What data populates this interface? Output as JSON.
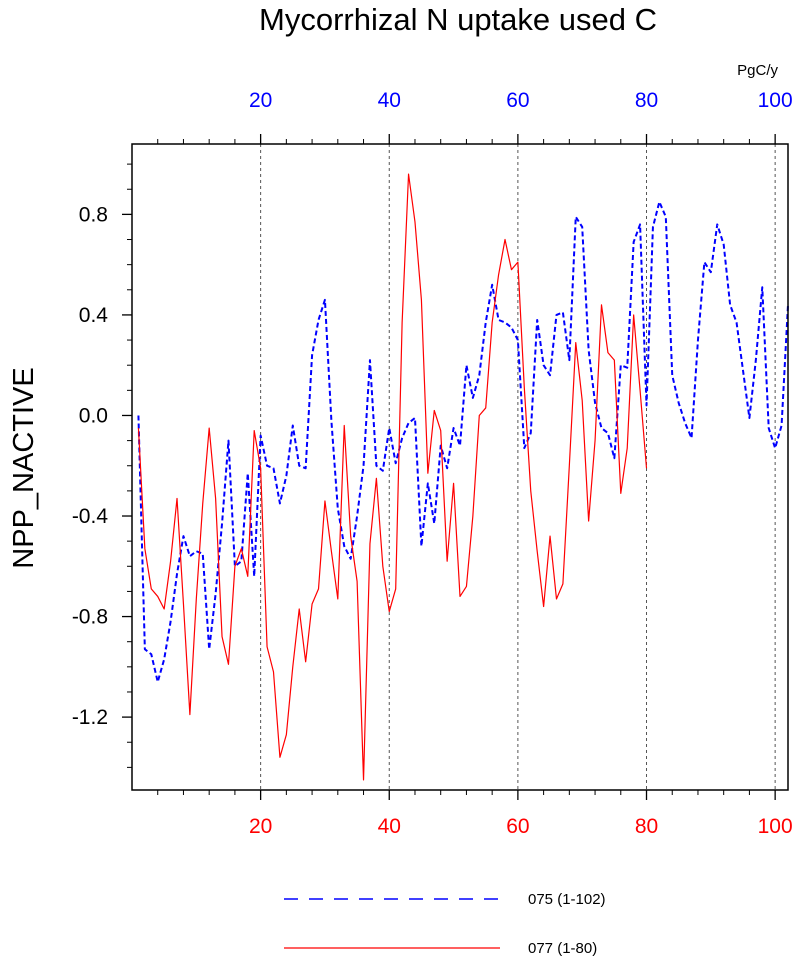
{
  "chart_data": {
    "type": "line",
    "title": "Mycorrhizal N uptake used C",
    "ylabel": "NPP_NACTIVE",
    "top_axis_unit": "PgC/y",
    "xlim": [
      0,
      102
    ],
    "ylim": [
      -1.49,
      1.08
    ],
    "y_ticks": [
      -1.2,
      -0.8,
      -0.4,
      0.0,
      0.4,
      0.8
    ],
    "y_tick_labels": [
      "-1.2",
      "-0.8",
      "-0.4",
      "0.0",
      "0.4",
      "0.8"
    ],
    "x_ticks": [
      20,
      40,
      60,
      80,
      100
    ],
    "x_tick_labels": [
      "20",
      "40",
      "60",
      "80",
      "100"
    ],
    "grid_x": [
      20,
      40,
      60,
      80,
      100
    ],
    "series": [
      {
        "name": "075 (1-102)",
        "color": "#0000ff",
        "style": "dashed",
        "axis": "top",
        "values": [
          0.0,
          -0.93,
          -0.95,
          -1.06,
          -0.97,
          -0.82,
          -0.63,
          -0.48,
          -0.56,
          -0.54,
          -0.55,
          -0.93,
          -0.71,
          -0.43,
          -0.1,
          -0.6,
          -0.58,
          -0.23,
          -0.64,
          -0.08,
          -0.2,
          -0.21,
          -0.35,
          -0.24,
          -0.04,
          -0.2,
          -0.21,
          0.24,
          0.38,
          0.46,
          -0.02,
          -0.37,
          -0.52,
          -0.57,
          -0.4,
          -0.2,
          0.22,
          -0.2,
          -0.22,
          -0.05,
          -0.19,
          -0.09,
          -0.03,
          -0.01,
          -0.52,
          -0.27,
          -0.43,
          -0.12,
          -0.21,
          -0.05,
          -0.12,
          0.2,
          0.07,
          0.16,
          0.37,
          0.52,
          0.38,
          0.37,
          0.35,
          0.3,
          -0.13,
          -0.07,
          0.38,
          0.2,
          0.16,
          0.4,
          0.41,
          0.22,
          0.79,
          0.75,
          0.26,
          0.05,
          -0.05,
          -0.07,
          -0.17,
          0.2,
          0.19,
          0.69,
          0.76,
          0.04,
          0.75,
          0.85,
          0.79,
          0.16,
          0.05,
          -0.03,
          -0.09,
          0.3,
          0.61,
          0.57,
          0.76,
          0.68,
          0.44,
          0.37,
          0.18,
          -0.01,
          0.22,
          0.51,
          -0.05,
          -0.13,
          -0.04,
          0.44
        ]
      },
      {
        "name": "077 (1-80)",
        "color": "#ff0000",
        "style": "solid",
        "axis": "bottom",
        "values": [
          -0.05,
          -0.53,
          -0.69,
          -0.72,
          -0.77,
          -0.58,
          -0.33,
          -0.75,
          -1.19,
          -0.73,
          -0.35,
          -0.05,
          -0.33,
          -0.88,
          -0.99,
          -0.6,
          -0.53,
          -0.64,
          -0.06,
          -0.21,
          -0.92,
          -1.02,
          -1.36,
          -1.27,
          -1.0,
          -0.77,
          -0.98,
          -0.75,
          -0.69,
          -0.34,
          -0.54,
          -0.73,
          -0.04,
          -0.48,
          -0.66,
          -1.45,
          -0.51,
          -0.25,
          -0.6,
          -0.78,
          -0.69,
          0.37,
          0.96,
          0.77,
          0.46,
          -0.23,
          0.02,
          -0.06,
          -0.58,
          -0.27,
          -0.72,
          -0.68,
          -0.4,
          0.0,
          0.03,
          0.37,
          0.56,
          0.7,
          0.58,
          0.61,
          0.11,
          -0.3,
          -0.54,
          -0.76,
          -0.48,
          -0.73,
          -0.67,
          -0.2,
          0.29,
          0.06,
          -0.42,
          -0.1,
          0.44,
          0.25,
          0.22,
          -0.31,
          -0.13,
          0.4,
          0.1,
          -0.21
        ]
      }
    ]
  }
}
